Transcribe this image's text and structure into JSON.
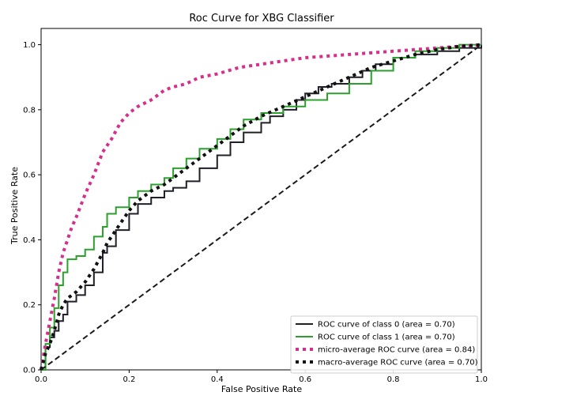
{
  "chart_data": {
    "type": "line",
    "title": "Roc Curve for XBG Classifier",
    "xlabel": "False Positive Rate",
    "ylabel": "True Positive Rate",
    "xlim": [
      0,
      1
    ],
    "ylim": [
      0,
      1.05
    ],
    "x_ticks": [
      0.0,
      0.2,
      0.4,
      0.6,
      0.8,
      1.0
    ],
    "y_ticks": [
      0.0,
      0.2,
      0.4,
      0.6,
      0.8,
      1.0
    ],
    "x_tick_labels": [
      "0.0",
      "0.2",
      "0.4",
      "0.6",
      "0.8",
      "1.0"
    ],
    "y_tick_labels": [
      "0.0",
      "0.2",
      "0.4",
      "0.6",
      "0.8",
      "1.0"
    ],
    "grid": false,
    "legend_position": "lower-right",
    "series": [
      {
        "name": "ROC curve of class 0 (area = 0.70)",
        "color": "#1f1f28",
        "style": "solid",
        "x": [
          0.0,
          0.01,
          0.02,
          0.03,
          0.04,
          0.05,
          0.06,
          0.08,
          0.1,
          0.12,
          0.14,
          0.15,
          0.17,
          0.2,
          0.22,
          0.25,
          0.28,
          0.3,
          0.33,
          0.36,
          0.4,
          0.43,
          0.46,
          0.5,
          0.52,
          0.55,
          0.58,
          0.6,
          0.63,
          0.66,
          0.7,
          0.73,
          0.76,
          0.8,
          0.85,
          0.9,
          0.95,
          1.0
        ],
        "y": [
          0.0,
          0.07,
          0.1,
          0.12,
          0.15,
          0.17,
          0.21,
          0.23,
          0.26,
          0.3,
          0.36,
          0.38,
          0.43,
          0.48,
          0.51,
          0.53,
          0.55,
          0.56,
          0.58,
          0.62,
          0.66,
          0.7,
          0.73,
          0.76,
          0.78,
          0.8,
          0.83,
          0.85,
          0.87,
          0.88,
          0.9,
          0.92,
          0.94,
          0.96,
          0.97,
          0.98,
          0.99,
          1.0
        ]
      },
      {
        "name": "ROC curve of class 1 (area = 0.70)",
        "color": "#2ca02c",
        "style": "solid",
        "x": [
          0.0,
          0.01,
          0.02,
          0.03,
          0.04,
          0.05,
          0.06,
          0.08,
          0.1,
          0.12,
          0.14,
          0.15,
          0.17,
          0.2,
          0.22,
          0.25,
          0.28,
          0.3,
          0.33,
          0.36,
          0.4,
          0.43,
          0.46,
          0.5,
          0.55,
          0.6,
          0.65,
          0.7,
          0.75,
          0.8,
          0.85,
          0.9,
          0.95,
          1.0
        ],
        "y": [
          0.0,
          0.08,
          0.13,
          0.19,
          0.26,
          0.3,
          0.34,
          0.35,
          0.37,
          0.41,
          0.44,
          0.48,
          0.5,
          0.53,
          0.55,
          0.57,
          0.59,
          0.62,
          0.65,
          0.68,
          0.71,
          0.74,
          0.77,
          0.79,
          0.81,
          0.83,
          0.85,
          0.88,
          0.92,
          0.96,
          0.98,
          0.99,
          1.0,
          1.0
        ]
      },
      {
        "name": "micro-average ROC curve (area = 0.84)",
        "color": "#d62e8a",
        "style": "dotted",
        "x": [
          0.0,
          0.01,
          0.02,
          0.03,
          0.04,
          0.05,
          0.06,
          0.07,
          0.08,
          0.1,
          0.12,
          0.14,
          0.16,
          0.18,
          0.2,
          0.22,
          0.25,
          0.28,
          0.3,
          0.33,
          0.36,
          0.4,
          0.45,
          0.5,
          0.55,
          0.6,
          0.65,
          0.7,
          0.75,
          0.8,
          0.85,
          0.9,
          0.95,
          1.0
        ],
        "y": [
          0.0,
          0.08,
          0.15,
          0.22,
          0.3,
          0.36,
          0.4,
          0.44,
          0.47,
          0.54,
          0.6,
          0.67,
          0.71,
          0.76,
          0.79,
          0.81,
          0.83,
          0.86,
          0.87,
          0.88,
          0.9,
          0.91,
          0.93,
          0.94,
          0.95,
          0.96,
          0.965,
          0.97,
          0.975,
          0.98,
          0.985,
          0.99,
          0.995,
          1.0
        ]
      },
      {
        "name": "macro-average ROC curve (area = 0.70)",
        "color": "#111111",
        "style": "dotted",
        "x": [
          0.0,
          0.01,
          0.02,
          0.03,
          0.04,
          0.05,
          0.06,
          0.08,
          0.1,
          0.12,
          0.14,
          0.15,
          0.17,
          0.2,
          0.22,
          0.25,
          0.28,
          0.3,
          0.33,
          0.36,
          0.4,
          0.43,
          0.46,
          0.5,
          0.55,
          0.6,
          0.65,
          0.7,
          0.75,
          0.8,
          0.85,
          0.9,
          0.95,
          1.0
        ],
        "y": [
          0.0,
          0.05,
          0.08,
          0.12,
          0.17,
          0.2,
          0.22,
          0.24,
          0.27,
          0.31,
          0.36,
          0.39,
          0.43,
          0.49,
          0.52,
          0.55,
          0.57,
          0.59,
          0.62,
          0.65,
          0.69,
          0.72,
          0.75,
          0.78,
          0.81,
          0.84,
          0.87,
          0.9,
          0.93,
          0.95,
          0.97,
          0.985,
          0.995,
          1.0
        ]
      },
      {
        "color": "#1a1a1a",
        "style": "dashed",
        "x": [
          0.0,
          1.0
        ],
        "y": [
          0.0,
          1.0
        ]
      }
    ]
  }
}
